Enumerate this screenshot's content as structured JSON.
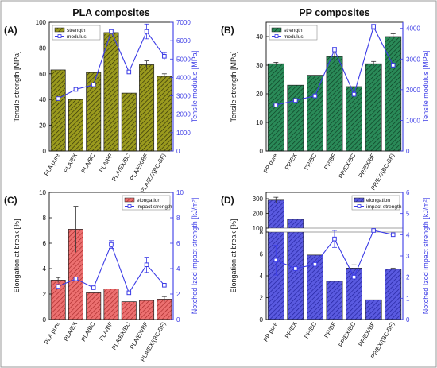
{
  "chart_data": [
    {
      "panel": "(A)",
      "title": "PLA composites",
      "type": "bar+line",
      "categories": [
        "PLA pure",
        "PLA/EX",
        "PLA/BC",
        "PLA/BF",
        "PLA/EX/BC",
        "PLA/EX/BF",
        "PLA/EX/(BC-BF)"
      ],
      "bar_series": {
        "name": "strength",
        "values": [
          63,
          40,
          61,
          92,
          45,
          67,
          58
        ],
        "errors": [
          0,
          0,
          0,
          0,
          0,
          3,
          2
        ],
        "color": "#9a9a1e"
      },
      "line_series": {
        "name": "modulus",
        "values": [
          2850,
          3350,
          3600,
          6500,
          4300,
          6500,
          5150
        ],
        "errors": [
          0,
          0,
          0,
          0,
          0,
          400,
          200
        ],
        "color": "#3b3be6"
      },
      "ylabel_left": "Tensile strength [MPa]",
      "ylabel_right": "Tensile modulus [MPa]",
      "ylim_left": [
        0,
        100
      ],
      "ylim_right": [
        0,
        7000
      ],
      "yticks_left": [
        "0",
        "20",
        "40",
        "60",
        "80",
        "100"
      ],
      "yticks_right": [
        "0",
        "1000",
        "2000",
        "3000",
        "4000",
        "5000",
        "6000",
        "7000"
      ],
      "legend_position": "top-left"
    },
    {
      "panel": "(B)",
      "title": "PP composites",
      "type": "bar+line",
      "categories": [
        "PP pure",
        "PP/EX",
        "PP/BC",
        "PP/BF",
        "PP/EX/BC",
        "PP/EX/BF",
        "PP/EX/(BC-BF)"
      ],
      "bar_series": {
        "name": "strength",
        "values": [
          30.5,
          23,
          26.5,
          33,
          22.5,
          30.5,
          40
        ],
        "errors": [
          0.5,
          0,
          0,
          1.5,
          0,
          0.8,
          1
        ],
        "color": "#1e7a4c"
      },
      "line_series": {
        "name": "modulus",
        "values": [
          1500,
          1650,
          1800,
          3300,
          1850,
          4050,
          2800
        ],
        "errors": [
          0,
          0,
          0,
          80,
          0,
          80,
          0
        ],
        "color": "#3b3be6"
      },
      "ylabel_left": "Tensile strength [MPa]",
      "ylabel_right": "Tensile modulus [MPa]",
      "ylim_left": [
        0,
        45
      ],
      "ylim_right": [
        0,
        4200
      ],
      "yticks_left": [
        "0",
        "10",
        "20",
        "30",
        "40"
      ],
      "yticks_right": [
        "0",
        "1000",
        "2000",
        "3000",
        "4000"
      ],
      "legend_position": "top-left"
    },
    {
      "panel": "(C)",
      "type": "bar+line",
      "categories": [
        "PLA pure",
        "PLA/EX",
        "PLA/BC",
        "PLA/BF",
        "PLA/EX/BC",
        "PLA/EX/BF",
        "PLA/EX/(BC-BF)"
      ],
      "bar_series": {
        "name": "elongation",
        "values": [
          3.1,
          7.1,
          2.1,
          2.4,
          1.4,
          1.5,
          1.6
        ],
        "errors": [
          0.2,
          1.8,
          0,
          0,
          0,
          0,
          0.2
        ],
        "color": "#e05a5a"
      },
      "line_series": {
        "name": "impact strength",
        "values": [
          2.6,
          3.2,
          2.5,
          5.9,
          2.1,
          4.3,
          2.7
        ],
        "errors": [
          0,
          0,
          0,
          0.3,
          0,
          0.6,
          0
        ],
        "color": "#3b3be6"
      },
      "ylabel_left": "Elongation at break [%]",
      "ylabel_right": "Notched Izod impact strength [kJ/m²]",
      "ylim_left": [
        0,
        10
      ],
      "ylim_right": [
        0,
        10
      ],
      "yticks_left": [
        "0",
        "2",
        "4",
        "6",
        "8",
        "10"
      ],
      "yticks_right": [
        "0",
        "2",
        "4",
        "6",
        "8",
        "10"
      ],
      "legend_position": "top-right"
    },
    {
      "panel": "(D)",
      "type": "bar+line",
      "categories": [
        "PP pure",
        "PP/EX",
        "PP/BC",
        "PP/BF",
        "PP/EX/BC",
        "PP/EX/BF",
        "PP/EX/(BC-BF)"
      ],
      "bar_series": {
        "name": "elongation",
        "values": [
          290,
          160,
          5.9,
          3.5,
          4.7,
          1.8,
          4.6
        ],
        "errors": [
          20,
          0,
          0,
          0,
          0.3,
          0,
          0.1
        ],
        "color": "#4a4ad6"
      },
      "line_series": {
        "name": "impact strength",
        "values": [
          2.8,
          2.4,
          2.6,
          3.8,
          2.0,
          4.2,
          4.0
        ],
        "errors": [
          0.7,
          0,
          0,
          0.4,
          0,
          0,
          0
        ],
        "color": "#3b3be6"
      },
      "ylabel_left": "Elongation at break [%]",
      "ylabel_right": "Notched Izod impact strength [kJ/m²]",
      "ylim_left": [
        0,
        8
      ],
      "ylim_left_upper": [
        100,
        300
      ],
      "ylim_right": [
        0,
        6
      ],
      "yticks_left": [
        "0",
        "2",
        "4",
        "6",
        "8"
      ],
      "yticks_left_upper": [
        "100",
        "200",
        "300"
      ],
      "yticks_right": [
        "0",
        "1",
        "2",
        "3",
        "4",
        "5",
        "6"
      ],
      "legend_position": "top-right"
    }
  ]
}
